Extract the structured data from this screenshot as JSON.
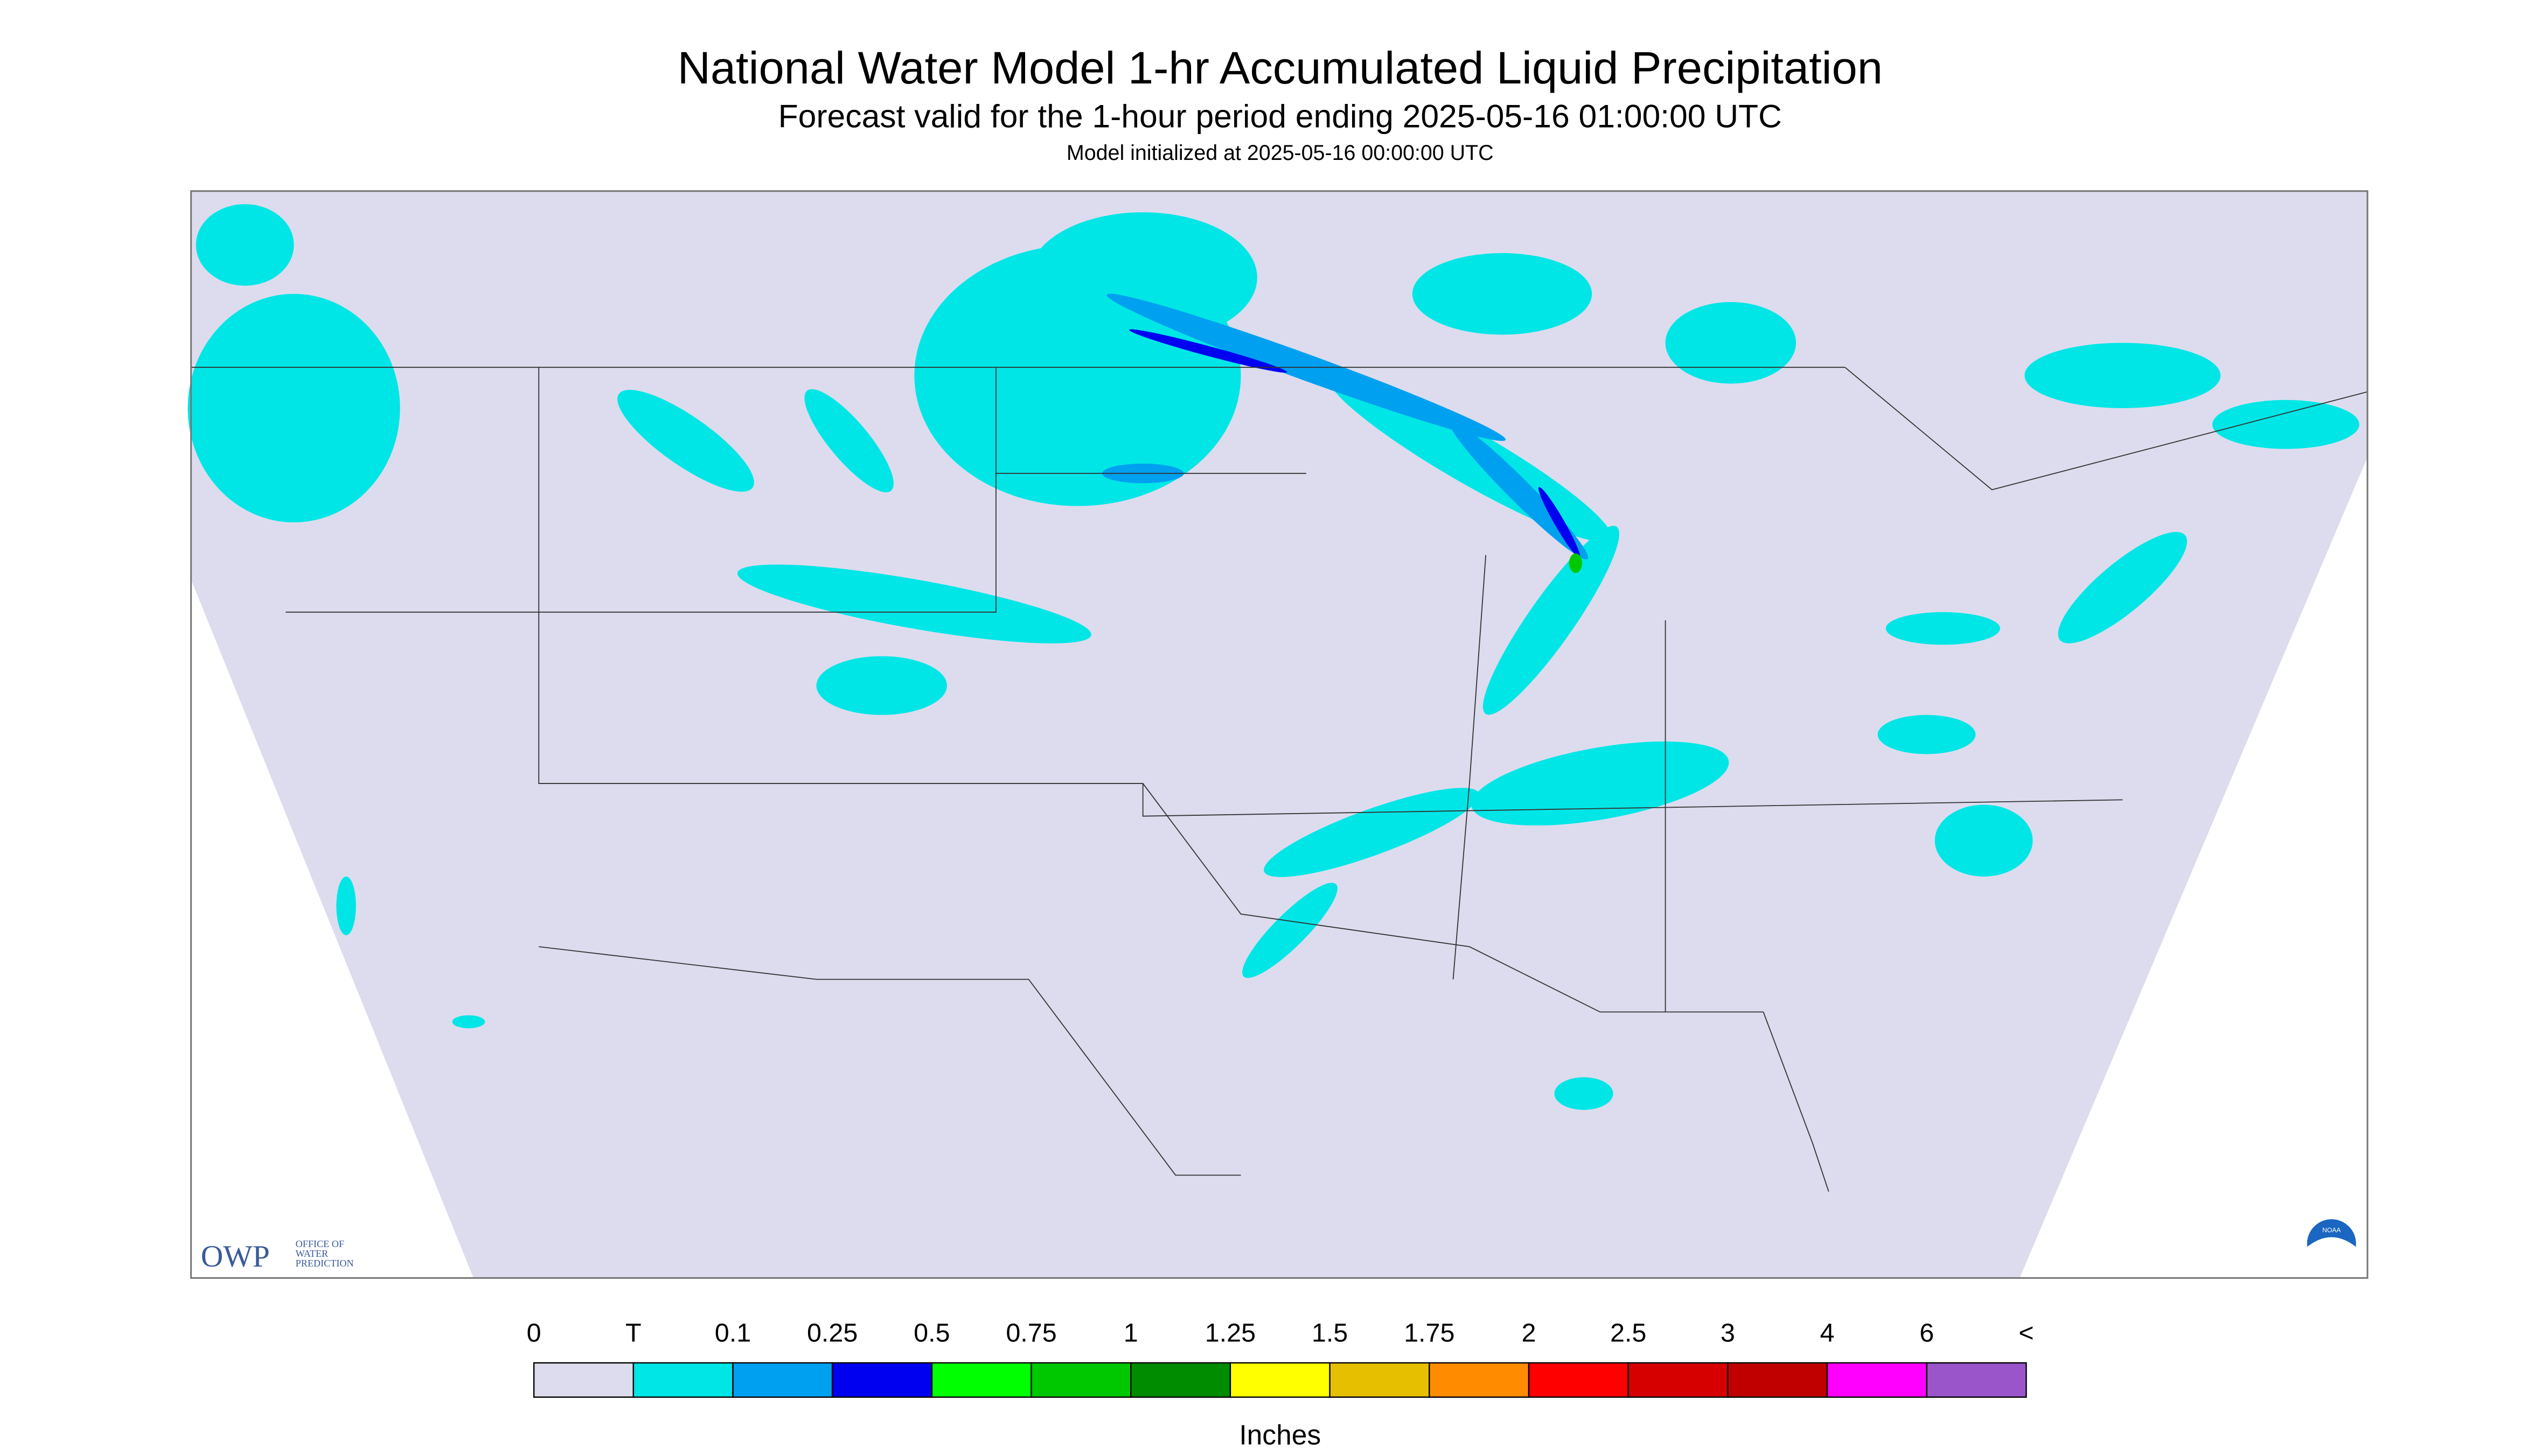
{
  "header": {
    "title": "National Water Model 1-hr Accumulated Liquid Precipitation",
    "subtitle": "Forecast valid for the 1-hour period ending 2025-05-16 01:00:00 UTC",
    "note": "Model initialized at 2025-05-16 00:00:00 UTC"
  },
  "logos": {
    "owp": "OWP",
    "owp_lines": [
      "OFFICE OF",
      "WATER",
      "PREDICTION"
    ],
    "noaa": "NOAA"
  },
  "legend": {
    "labels": [
      "0",
      "T",
      "0.1",
      "0.25",
      "0.5",
      "0.75",
      "1",
      "1.25",
      "1.5",
      "1.75",
      "2",
      "2.5",
      "3",
      "4",
      "6",
      "<"
    ],
    "colors": [
      "#dcdcee",
      "#00e6e6",
      "#00a0f0",
      "#0000f0",
      "#00ff00",
      "#00c800",
      "#008c00",
      "#ffff00",
      "#e6c000",
      "#ff8c00",
      "#ff0000",
      "#d60000",
      "#c00000",
      "#ff00ff",
      "#9955c9"
    ],
    "unit": "Inches"
  }
}
